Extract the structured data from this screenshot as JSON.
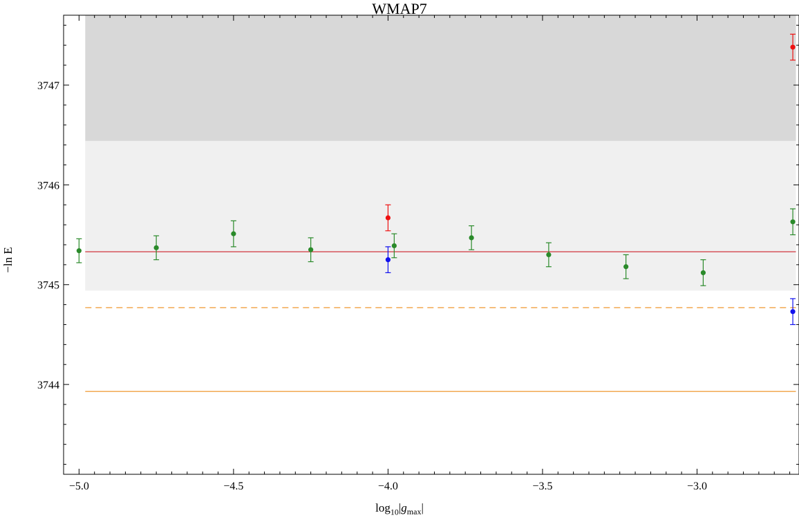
{
  "chart_data": {
    "type": "scatter",
    "title": "WMAP7",
    "ylabel": "−ln E",
    "xlabel_parts": {
      "base": "log",
      "sub": "10",
      "var": "g",
      "varsub": "max"
    },
    "xlim": [
      -5.05,
      -2.67
    ],
    "ylim": [
      3743.1,
      3747.7
    ],
    "xticks": [
      -5.0,
      -4.5,
      -4.0,
      -3.5,
      -3.0
    ],
    "xtick_labels": [
      "−5.0",
      "−4.5",
      "−4.0",
      "−3.5",
      "−3.0"
    ],
    "yticks": [
      3744,
      3745,
      3746,
      3747
    ],
    "ytick_labels": [
      "3744",
      "3745",
      "3746",
      "3747"
    ],
    "bands": [
      {
        "y0": 3746.44,
        "y1": 3747.7,
        "color": "#d8d8d8",
        "x0": -4.98,
        "x1": -2.68
      },
      {
        "y0": 3744.94,
        "y1": 3746.44,
        "color": "#f0f0f0",
        "x0": -4.98,
        "x1": -2.68
      }
    ],
    "hlines": [
      {
        "y": 3745.33,
        "color": "#d0343c",
        "style": "solid"
      },
      {
        "y": 3744.77,
        "color": "#f0a040",
        "style": "dashed"
      },
      {
        "y": 3743.93,
        "color": "#f0a040",
        "style": "solid"
      }
    ],
    "series": [
      {
        "color": "#2a8a2a",
        "points": [
          {
            "x": -5.0,
            "y": 3745.34,
            "err": 0.12
          },
          {
            "x": -4.75,
            "y": 3745.37,
            "err": 0.12
          },
          {
            "x": -4.5,
            "y": 3745.51,
            "err": 0.13
          },
          {
            "x": -4.25,
            "y": 3745.35,
            "err": 0.12
          },
          {
            "x": -3.98,
            "y": 3745.39,
            "err": 0.12
          },
          {
            "x": -3.73,
            "y": 3745.47,
            "err": 0.12
          },
          {
            "x": -3.48,
            "y": 3745.3,
            "err": 0.12
          },
          {
            "x": -3.23,
            "y": 3745.18,
            "err": 0.12
          },
          {
            "x": -2.98,
            "y": 3745.12,
            "err": 0.13
          },
          {
            "x": -2.69,
            "y": 3745.63,
            "err": 0.13
          }
        ]
      },
      {
        "color": "#ee1111",
        "points": [
          {
            "x": -4.0,
            "y": 3745.67,
            "err": 0.13
          },
          {
            "x": -2.69,
            "y": 3747.38,
            "err": 0.13
          }
        ]
      },
      {
        "color": "#1111ee",
        "points": [
          {
            "x": -4.0,
            "y": 3745.25,
            "err": 0.13
          },
          {
            "x": -2.69,
            "y": 3744.73,
            "err": 0.13
          }
        ]
      }
    ]
  }
}
